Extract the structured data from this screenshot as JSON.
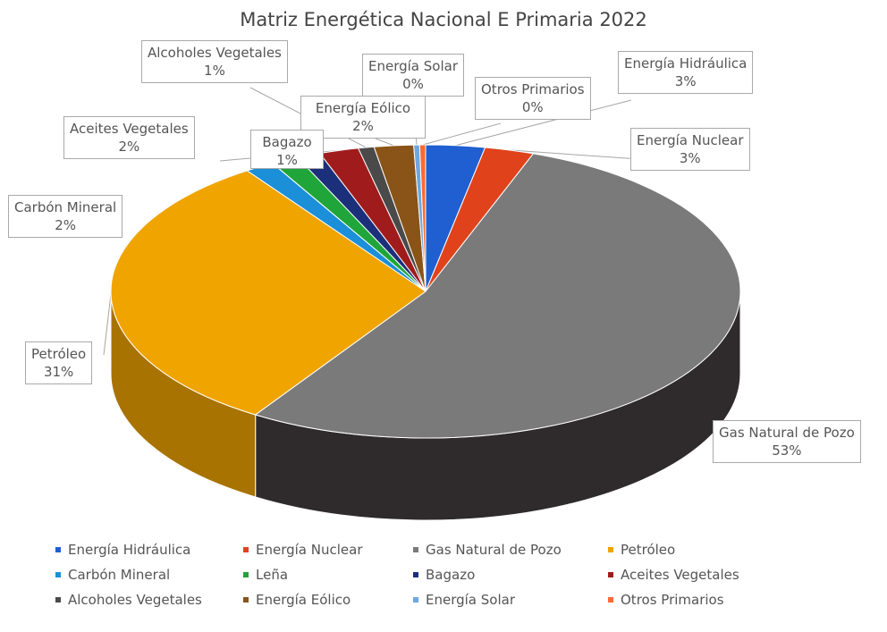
{
  "chart_data": {
    "type": "pie",
    "title": "Matriz Energética Nacional E Primaria 2022",
    "slices": [
      {
        "name": "Energía Hidráulica",
        "value": 3,
        "label": "3%",
        "color": "#1f5fd1"
      },
      {
        "name": "Energía Nuclear",
        "value": 2.5,
        "label": "3%",
        "color": "#e0431c"
      },
      {
        "name": "Gas Natural de Pozo",
        "value": 53,
        "label": "53%",
        "color": "#7a7a7a"
      },
      {
        "name": "Petróleo",
        "value": 31,
        "label": "31%",
        "color": "#f0a400"
      },
      {
        "name": "Carbón Mineral",
        "value": 1.5,
        "label": "2%",
        "color": "#1b8fd8"
      },
      {
        "name": "Leña",
        "value": 1.4,
        "label": "",
        "color": "#1fa53a"
      },
      {
        "name": "Bagazo",
        "value": 1.2,
        "label": "1%",
        "color": "#1c2f7a"
      },
      {
        "name": "Aceites Vegetales",
        "value": 2.0,
        "label": "2%",
        "color": "#a01c1c"
      },
      {
        "name": "Alcoholes Vegetales",
        "value": 0.8,
        "label": "1%",
        "color": "#4a4a4a"
      },
      {
        "name": "Energía Eólico",
        "value": 2.0,
        "label": "2%",
        "color": "#8a5418"
      },
      {
        "name": "Energía Solar",
        "value": 0.3,
        "label": "0%",
        "color": "#6da7e0"
      },
      {
        "name": "Otros Primarios",
        "value": 0.3,
        "label": "0%",
        "color": "#ff6a33"
      }
    ],
    "legend_position": "bottom"
  },
  "callouts": [
    {
      "name": "Alcoholes Vegetales",
      "pct": "1%"
    },
    {
      "name": "Energía Solar",
      "pct": "0%"
    },
    {
      "name": "Energía Hidráulica",
      "pct": "3%"
    },
    {
      "name": "Energía Eólico",
      "pct": "2%"
    },
    {
      "name": "Otros Primarios",
      "pct": "0%"
    },
    {
      "name": "Aceites Vegetales",
      "pct": "2%"
    },
    {
      "name": "Bagazo",
      "pct": "1%"
    },
    {
      "name": "Energía Nuclear",
      "pct": "3%"
    },
    {
      "name": "Carbón Mineral",
      "pct": "2%"
    },
    {
      "name": "Petróleo",
      "pct": "31%"
    },
    {
      "name": "Gas Natural de Pozo",
      "pct": "53%"
    }
  ],
  "legend": [
    {
      "label": "Energía Hidráulica",
      "color": "#1f5fd1"
    },
    {
      "label": "Energía Nuclear",
      "color": "#e0431c"
    },
    {
      "label": "Gas Natural de Pozo",
      "color": "#7a7a7a"
    },
    {
      "label": "Petróleo",
      "color": "#f0a400"
    },
    {
      "label": "Carbón Mineral",
      "color": "#1b8fd8"
    },
    {
      "label": "Leña",
      "color": "#1fa53a"
    },
    {
      "label": "Bagazo",
      "color": "#1c2f7a"
    },
    {
      "label": "Aceites Vegetales",
      "color": "#a01c1c"
    },
    {
      "label": "Alcoholes Vegetales",
      "color": "#4a4a4a"
    },
    {
      "label": "Energía Eólico",
      "color": "#8a5418"
    },
    {
      "label": "Energía Solar",
      "color": "#6da7e0"
    },
    {
      "label": "Otros Primarios",
      "color": "#ff6a33"
    }
  ]
}
